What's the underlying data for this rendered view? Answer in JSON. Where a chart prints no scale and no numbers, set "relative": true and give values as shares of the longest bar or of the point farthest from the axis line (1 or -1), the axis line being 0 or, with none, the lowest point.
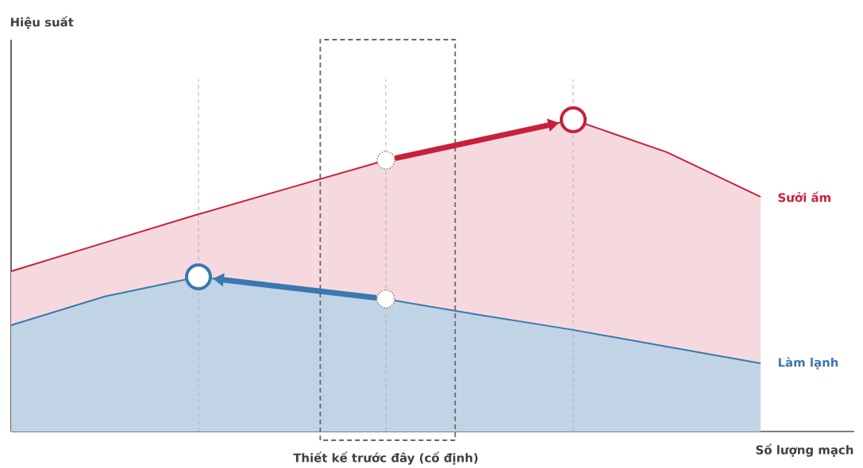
{
  "chart_data": {
    "type": "area",
    "relative": true,
    "xlabel": "Số lượng mạch",
    "categories": [
      null,
      null,
      null,
      null,
      null,
      null,
      null,
      null,
      null
    ],
    "series": [
      {
        "name": "Sưởi ấm",
        "color": "#c8203a",
        "values": [
          0.514,
          0.606,
          0.697,
          0.784,
          0.87,
          0.936,
          1.0,
          0.896,
          0.753
        ]
      },
      {
        "name": "Làm lạnh",
        "color": "#3a78b0",
        "values": [
          0.341,
          0.433,
          0.496,
          0.461,
          0.425,
          0.374,
          0.326,
          0.272,
          0.219
        ]
      }
    ],
    "annotations": [
      "Hiệu suất",
      "Thiết kế trước đây (cố định)"
    ],
    "grid": "x"
  }
}
